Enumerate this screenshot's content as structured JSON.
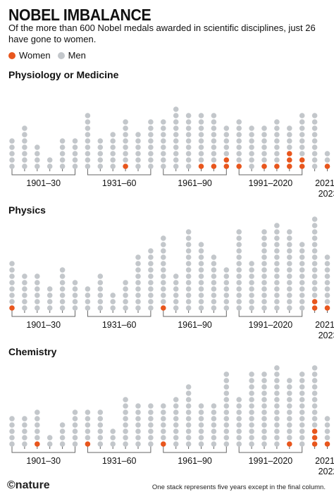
{
  "header": {
    "title": "NOBEL IMBALANCE",
    "subtitle": "Of the more than 600 Nobel medals awarded in scientific disciplines, just 26 have gone to women."
  },
  "legend": {
    "women_label": "Women",
    "men_label": "Men"
  },
  "colors": {
    "women": "#e8561d",
    "men": "#c3c7cb",
    "axis": "#666666"
  },
  "footer": {
    "brand": "©nature",
    "note": "One stack represents five years except in the final column."
  },
  "chart_data": [
    {
      "type": "stacked-dot",
      "title": "Physiology or Medicine",
      "groups": [
        "1901–30",
        "1931–60",
        "1961–90",
        "1991–2020"
      ],
      "final_label": "2021–2023",
      "women": [
        0,
        0,
        0,
        0,
        0,
        0,
        0,
        0,
        0,
        1,
        0,
        0,
        0,
        0,
        0,
        1,
        1,
        2,
        1,
        0,
        1,
        1,
        3,
        2,
        0,
        1
      ],
      "men": [
        5,
        7,
        4,
        2,
        5,
        5,
        9,
        5,
        6,
        7,
        6,
        8,
        8,
        10,
        9,
        8,
        8,
        5,
        7,
        7,
        6,
        7,
        4,
        7,
        9,
        2
      ]
    },
    {
      "type": "stacked-dot",
      "title": "Physics",
      "groups": [
        "1901–30",
        "1931–60",
        "1961–90",
        "1991–2020"
      ],
      "final_label": "2021–2023",
      "women": [
        1,
        0,
        0,
        0,
        0,
        0,
        0,
        0,
        0,
        0,
        0,
        0,
        1,
        0,
        0,
        0,
        0,
        0,
        0,
        0,
        0,
        0,
        0,
        0,
        2,
        1
      ],
      "men": [
        7,
        6,
        6,
        4,
        7,
        5,
        4,
        6,
        3,
        5,
        9,
        10,
        11,
        6,
        13,
        11,
        9,
        7,
        13,
        8,
        13,
        14,
        13,
        11,
        13,
        8
      ]
    },
    {
      "type": "stacked-dot",
      "title": "Chemistry",
      "groups": [
        "1901–30",
        "1931–60",
        "1961–90",
        "1991–2020"
      ],
      "final_label": "2021–2022",
      "women": [
        0,
        0,
        1,
        0,
        0,
        0,
        1,
        0,
        0,
        0,
        0,
        0,
        1,
        0,
        0,
        0,
        0,
        0,
        0,
        0,
        0,
        0,
        1,
        0,
        3,
        1
      ],
      "men": [
        5,
        5,
        5,
        2,
        4,
        6,
        5,
        6,
        3,
        8,
        7,
        7,
        6,
        8,
        10,
        7,
        7,
        12,
        8,
        12,
        12,
        13,
        10,
        12,
        10,
        4
      ]
    }
  ]
}
